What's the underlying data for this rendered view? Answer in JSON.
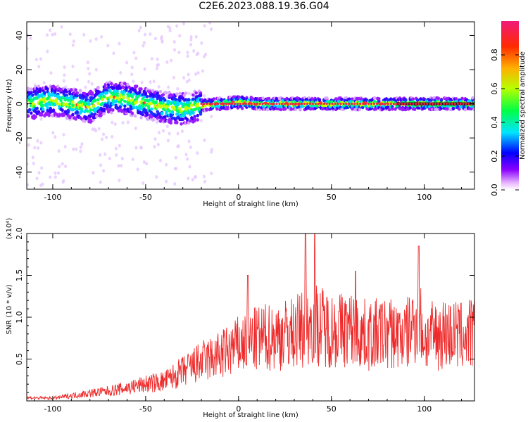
{
  "title": "C2E6.2023.088.19.36.G04",
  "colors": {
    "snr_line": "#ee2a2a",
    "band_core": "#ee2244",
    "frame": "#000000"
  },
  "chart_data": [
    {
      "type": "heatmap",
      "xlabel": "Height of straight line (km)",
      "ylabel": "Frequency (Hz)",
      "xlim": [
        -114,
        127
      ],
      "ylim": [
        -50,
        48
      ],
      "xticks": [
        -100,
        -50,
        0,
        50,
        100
      ],
      "xtick_labels": [
        "-100",
        "-50",
        "0",
        "50",
        "100"
      ],
      "yticks": [
        -40,
        -20,
        0,
        20,
        40
      ],
      "ytick_labels": [
        "-40",
        "-20",
        "0",
        "20",
        "40"
      ],
      "colorbar": {
        "label": "Normalized spectral amplitude",
        "range": [
          0.0,
          1.0
        ],
        "ticks": [
          0.0,
          0.2,
          0.4,
          0.6,
          0.8
        ],
        "tick_labels": [
          "0.0",
          "0.2",
          "0.4",
          "0.6",
          "0.8"
        ],
        "colormap": "rainbow"
      },
      "band_center_hz": [
        {
          "x": -110,
          "y": 1
        },
        {
          "x": -100,
          "y": 2
        },
        {
          "x": -90,
          "y": 0
        },
        {
          "x": -80,
          "y": -2
        },
        {
          "x": -70,
          "y": 4
        },
        {
          "x": -60,
          "y": 3
        },
        {
          "x": -50,
          "y": 0
        },
        {
          "x": -40,
          "y": -2
        },
        {
          "x": -30,
          "y": -3
        },
        {
          "x": -20,
          "y": -1
        },
        {
          "x": -10,
          "y": 0
        },
        {
          "x": 0,
          "y": 1
        },
        {
          "x": 10,
          "y": 0
        },
        {
          "x": 30,
          "y": 0
        },
        {
          "x": 60,
          "y": 0
        },
        {
          "x": 90,
          "y": 0
        },
        {
          "x": 127,
          "y": 0
        }
      ]
    },
    {
      "type": "line",
      "xlabel": "Height of straight line (km)",
      "ylabel": "SNR (10 * v/v)",
      "ylabel_scale": "(x10⁴)",
      "xlim": [
        -114,
        127
      ],
      "ylim": [
        0,
        2.0
      ],
      "xticks": [
        -100,
        -50,
        0,
        50,
        100
      ],
      "xtick_labels": [
        "-100",
        "-50",
        "0",
        "50",
        "100"
      ],
      "yticks": [
        0.5,
        1.0,
        1.5,
        2.0
      ],
      "ytick_labels": [
        "0.5",
        "1.0",
        "1.5",
        "2.0"
      ],
      "series": [
        {
          "values_envelope": [
            {
              "x": -114,
              "y": 0.05
            },
            {
              "x": -100,
              "y": 0.04
            },
            {
              "x": -90,
              "y": 0.08
            },
            {
              "x": -80,
              "y": 0.12
            },
            {
              "x": -70,
              "y": 0.15
            },
            {
              "x": -60,
              "y": 0.2
            },
            {
              "x": -50,
              "y": 0.26
            },
            {
              "x": -40,
              "y": 0.3
            },
            {
              "x": -30,
              "y": 0.45
            },
            {
              "x": -20,
              "y": 0.6
            },
            {
              "x": -10,
              "y": 0.7
            },
            {
              "x": 0,
              "y": 0.85
            },
            {
              "x": 10,
              "y": 0.95
            },
            {
              "x": 20,
              "y": 1.0
            },
            {
              "x": 30,
              "y": 1.05
            },
            {
              "x": 40,
              "y": 1.2
            },
            {
              "x": 50,
              "y": 1.1
            },
            {
              "x": 60,
              "y": 1.1
            },
            {
              "x": 70,
              "y": 1.0
            },
            {
              "x": 80,
              "y": 1.05
            },
            {
              "x": 90,
              "y": 1.0
            },
            {
              "x": 97,
              "y": 1.3
            },
            {
              "x": 100,
              "y": 0.95
            },
            {
              "x": 110,
              "y": 1.05
            },
            {
              "x": 120,
              "y": 1.0
            },
            {
              "x": 127,
              "y": 1.05
            }
          ],
          "peaks": [
            {
              "x": 5,
              "y": 1.5
            },
            {
              "x": 36,
              "y": 2.0
            },
            {
              "x": 41,
              "y": 2.0
            },
            {
              "x": 63,
              "y": 1.55
            },
            {
              "x": 97,
              "y": 1.85
            }
          ]
        }
      ]
    }
  ]
}
